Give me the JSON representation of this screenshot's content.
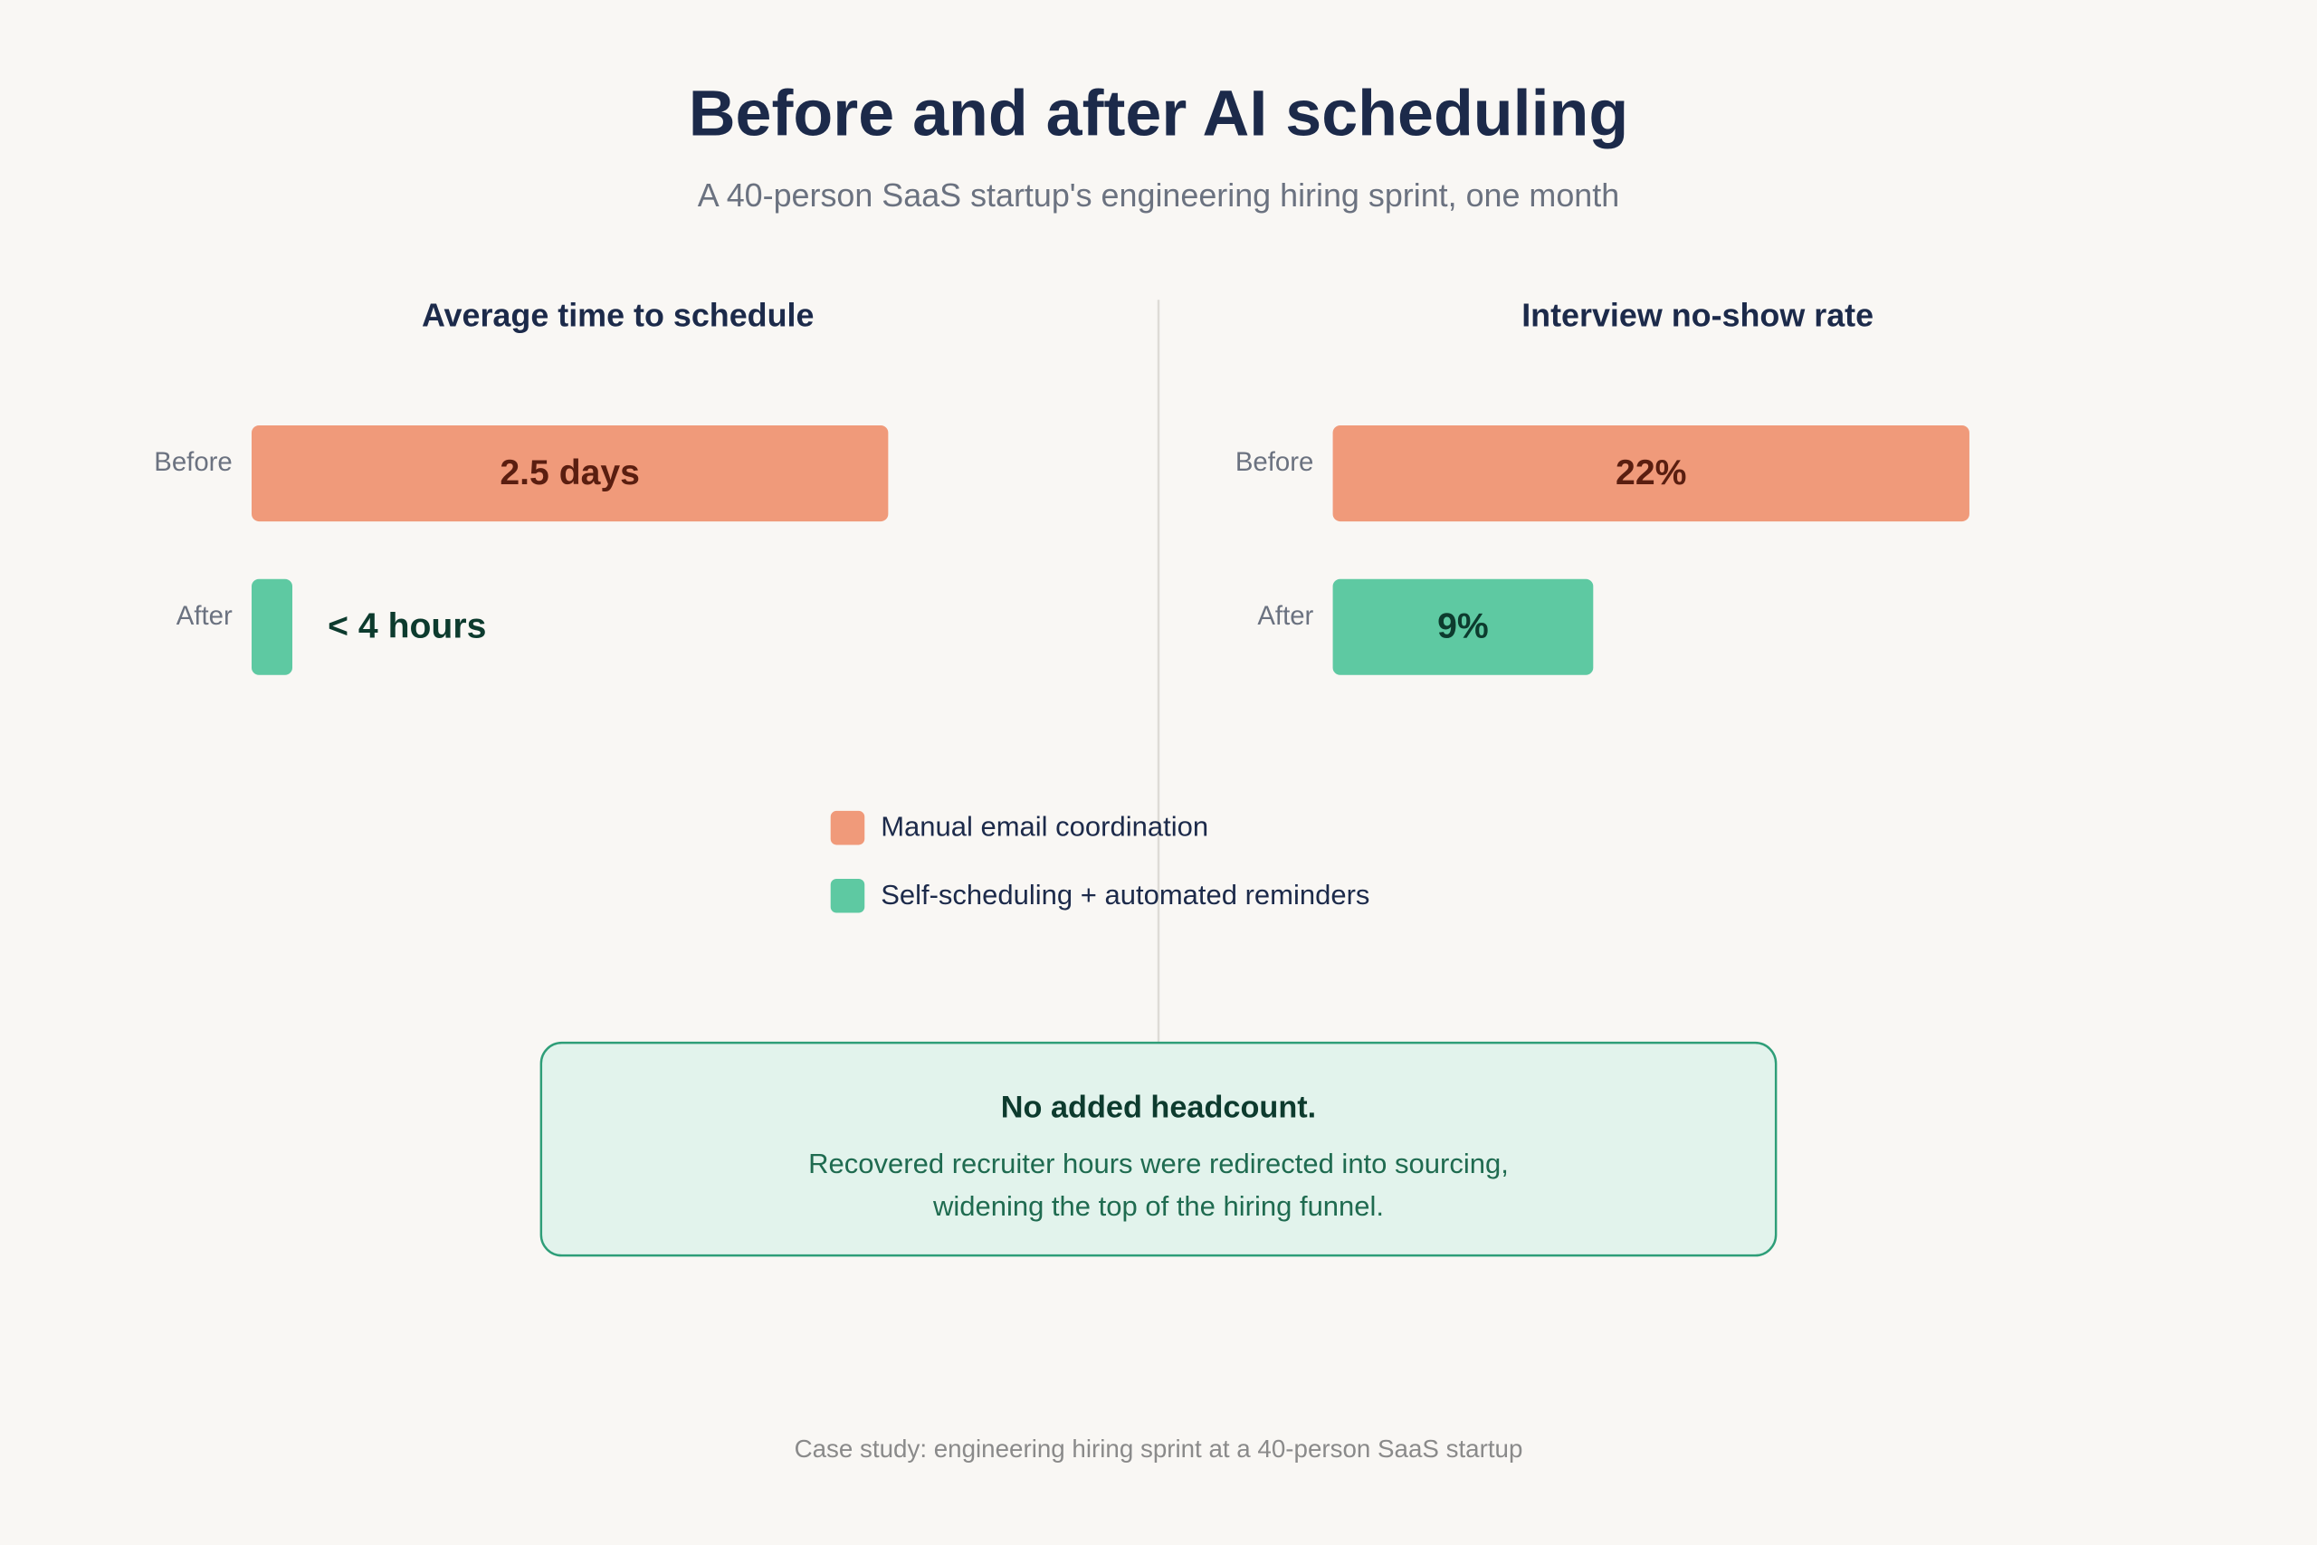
{
  "header": {
    "title": "Before and after AI scheduling",
    "subtitle": "A 40-person SaaS startup's engineering hiring sprint, one month"
  },
  "chart_data": [
    {
      "type": "bar",
      "orientation": "horizontal",
      "title": "Average time to schedule",
      "categories": [
        "Before",
        "After"
      ],
      "values": [
        2.5,
        0.16
      ],
      "value_labels": [
        "2.5 days",
        "< 4 hours"
      ],
      "colors": [
        "#f09a7a",
        "#5ec9a2"
      ],
      "label_colors": [
        "#5a1e10",
        "#0d3b2e"
      ]
    },
    {
      "type": "bar",
      "orientation": "horizontal",
      "title": "Interview no-show rate",
      "categories": [
        "Before",
        "After"
      ],
      "values": [
        22,
        9
      ],
      "value_labels": [
        "22%",
        "9%"
      ],
      "colors": [
        "#f09a7a",
        "#5ec9a2"
      ],
      "label_colors": [
        "#5a1e10",
        "#0d3b2e"
      ]
    }
  ],
  "legend": [
    {
      "label": "Manual email coordination",
      "color": "#f09a7a"
    },
    {
      "label": "Self-scheduling + automated reminders",
      "color": "#5ec9a2"
    }
  ],
  "callout": {
    "title": "No added headcount.",
    "body_lines": [
      "Recovered recruiter hours were redirected into sourcing,",
      "widening the top of the hiring funnel."
    ]
  },
  "footer": "Case study: engineering hiring sprint at a 40-person SaaS startup"
}
